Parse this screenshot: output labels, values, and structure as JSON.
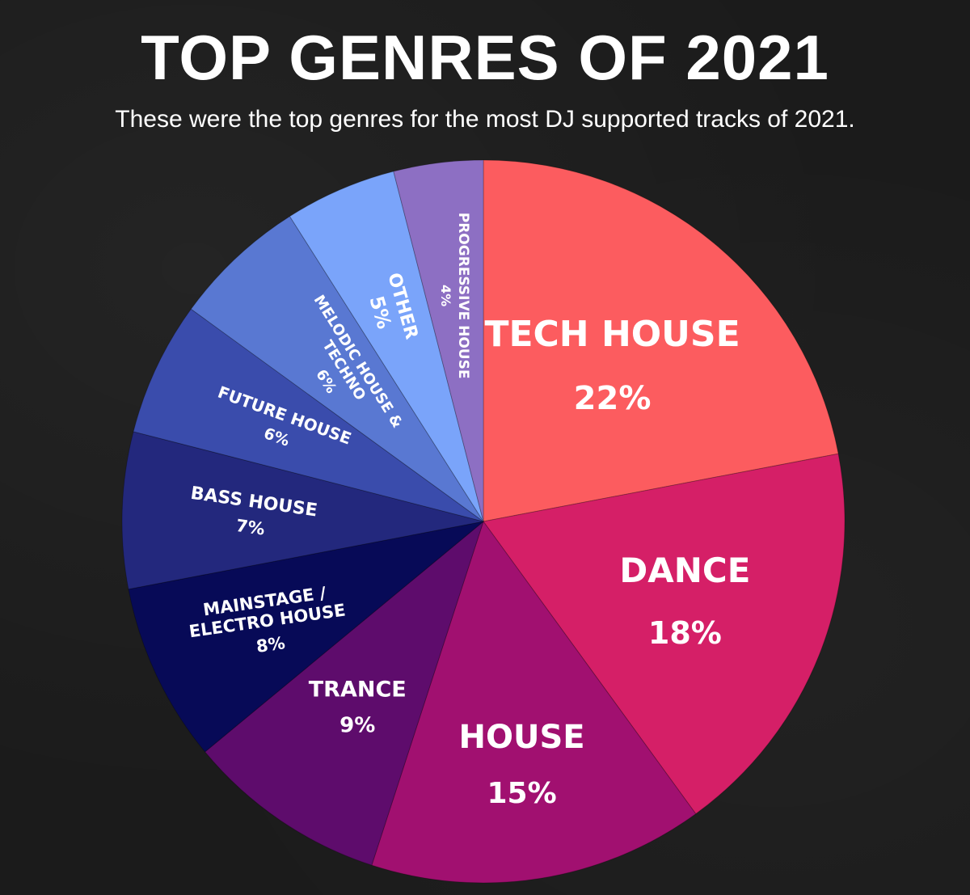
{
  "title": "TOP GENRES OF 2021",
  "subtitle": "These were the top genres for the most DJ supported tracks of 2021.",
  "chart_data": {
    "type": "pie",
    "categories": [
      "TECH HOUSE",
      "DANCE",
      "HOUSE",
      "TRANCE",
      "MAINSTAGE / ELECTRO HOUSE",
      "BASS HOUSE",
      "FUTURE HOUSE",
      "MELODIC HOUSE & TECHNO",
      "OTHER",
      "PROGRESSIVE HOUSE"
    ],
    "values": [
      22,
      18,
      15,
      9,
      8,
      7,
      6,
      6,
      5,
      4
    ],
    "value_labels": [
      "22%",
      "18%",
      "15%",
      "9%",
      "8%",
      "7%",
      "6%",
      "6%",
      "5%",
      "4%"
    ],
    "label_lines": [
      [
        "TECH HOUSE"
      ],
      [
        "DANCE"
      ],
      [
        "HOUSE"
      ],
      [
        "TRANCE"
      ],
      [
        "MAINSTAGE /",
        "ELECTRO HOUSE"
      ],
      [
        "BASS HOUSE"
      ],
      [
        "FUTURE HOUSE"
      ],
      [
        "MELODIC HOUSE &",
        "TECHNO"
      ],
      [
        "OTHER"
      ],
      [
        "PROGRESSIVE HOUSE"
      ]
    ],
    "colors": [
      "#fc5c5f",
      "#d51f67",
      "#a11070",
      "#5e0c6c",
      "#070a57",
      "#23287d",
      "#3a4cac",
      "#5978d2",
      "#7aa4fa",
      "#8d6fc3"
    ],
    "start_angle_deg": 0,
    "direction": "clockwise"
  }
}
